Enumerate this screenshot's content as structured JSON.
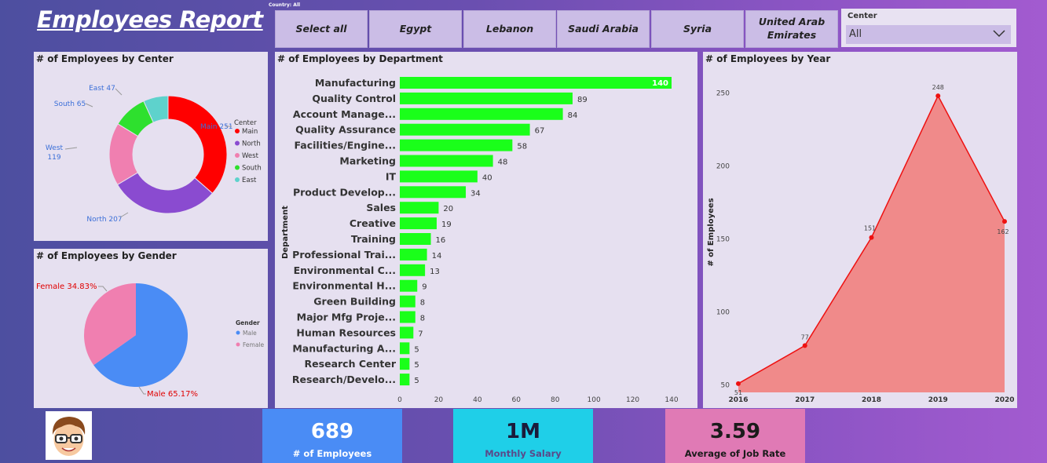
{
  "header": {
    "title": "Employees Report",
    "country_filter_label": "Country: All"
  },
  "country_slicer": {
    "options": [
      "Select all",
      "Egypt",
      "Lebanon",
      "Saudi Arabia",
      "Syria",
      "United Arab Emirates"
    ]
  },
  "center_slicer": {
    "label": "Center",
    "selected": "All"
  },
  "charts": {
    "center": {
      "title": "# of Employees by Center"
    },
    "gender": {
      "title": "# of Employees by Gender"
    },
    "department": {
      "title": "# of Employees by Department"
    },
    "year": {
      "title": "# of Employees by Year"
    }
  },
  "kpis": [
    {
      "value": "689",
      "label": "# of Employees",
      "bg": "#4a8cf5",
      "color": "#ffffff"
    },
    {
      "value": "1M",
      "label": "Monthly Salary",
      "bg": "#1fcfe8",
      "color": "#1b1b3a"
    },
    {
      "value": "3.59",
      "label": "Average of Job Rate",
      "bg": "#e07ab5",
      "color": "#1b1b1b"
    }
  ],
  "chart_data": [
    {
      "type": "donut",
      "title": "# of Employees by Center",
      "legend_title": "Center",
      "legend_position": "right",
      "categories": [
        "Main",
        "North",
        "West",
        "South",
        "East"
      ],
      "values": [
        251,
        207,
        119,
        65,
        47
      ],
      "colors": [
        "#ff0000",
        "#8a4bd0",
        "#f07fb0",
        "#2ee02e",
        "#5ed2cc"
      ]
    },
    {
      "type": "pie",
      "title": "# of Employees by Gender",
      "legend_title": "Gender",
      "legend_position": "right",
      "categories": [
        "Male",
        "Female"
      ],
      "values": [
        65.17,
        34.83
      ],
      "labels": [
        "Male 65.17%",
        "Female 34.83%"
      ],
      "colors": [
        "#4a8cf5",
        "#f07fb0"
      ]
    },
    {
      "type": "bar",
      "orientation": "horizontal",
      "title": "# of Employees by Department",
      "ylabel": "Department",
      "xlim": [
        0,
        140
      ],
      "xticks": [
        0,
        20,
        40,
        60,
        80,
        100,
        120,
        140
      ],
      "color": "#1aff1a",
      "categories": [
        "Manufacturing",
        "Quality Control",
        "Account Manage...",
        "Quality Assurance",
        "Facilities/Engine...",
        "Marketing",
        "IT",
        "Product Develop...",
        "Sales",
        "Creative",
        "Training",
        "Professional Trai...",
        "Environmental C...",
        "Environmental H...",
        "Green Building",
        "Major Mfg Proje...",
        "Human Resources",
        "Manufacturing A...",
        "Research Center",
        "Research/Develo..."
      ],
      "values": [
        140,
        89,
        84,
        67,
        58,
        48,
        40,
        34,
        20,
        19,
        16,
        14,
        13,
        9,
        8,
        8,
        7,
        5,
        5,
        5
      ]
    },
    {
      "type": "area",
      "title": "# of Employees by Year",
      "ylabel": "# of Employees",
      "x": [
        "2016",
        "2017",
        "2018",
        "2019",
        "2020"
      ],
      "values": [
        51,
        77,
        151,
        248,
        162
      ],
      "yticks": [
        50,
        100,
        150,
        200,
        250
      ],
      "ylim": [
        45,
        262
      ],
      "line_color": "#ee1111",
      "fill_color": "#f08a8a"
    }
  ]
}
